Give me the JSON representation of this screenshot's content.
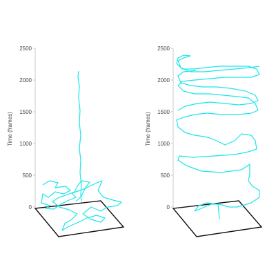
{
  "colors": {
    "trajectory": "#19e6ea",
    "axis": "#bbbbbb",
    "floor": "#111111",
    "text": "#444444"
  },
  "chart_data": [
    {
      "type": "line",
      "subtype": "3d-trajectory",
      "zlabel": "Time (frames)",
      "zticks": [
        "0",
        "500",
        "1000",
        "1500",
        "2000",
        "2500"
      ],
      "zlim": [
        0,
        2500
      ],
      "grid": false,
      "description_of_series": "single trajectory; meanders on the floor for roughly the first 300 frames, then stays near one spot up to about 2100 frames",
      "z_end": 2100
    },
    {
      "type": "line",
      "subtype": "3d-trajectory",
      "zlabel": "Time (frames)",
      "zticks": [
        "0",
        "500",
        "1000",
        "1500",
        "2000",
        "2500"
      ],
      "zlim": [
        0,
        2500
      ],
      "grid": false,
      "description_of_series": "single trajectory; repeated laps around the arena rising through time up to about 2450 frames",
      "z_end": 2450
    }
  ]
}
